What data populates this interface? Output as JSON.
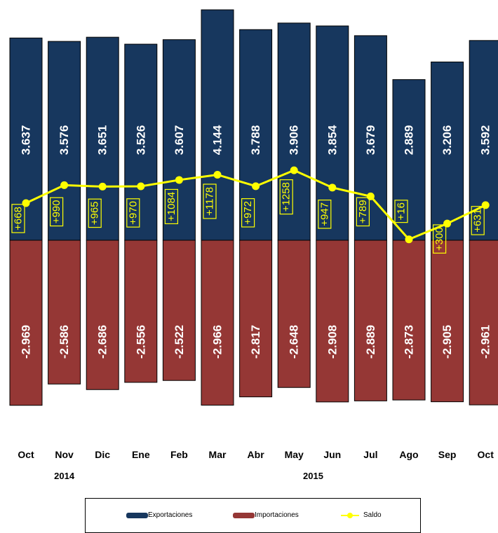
{
  "chart_data": {
    "type": "bar",
    "categories": [
      "Oct",
      "Nov",
      "Dic",
      "Ene",
      "Feb",
      "Mar",
      "Abr",
      "May",
      "Jun",
      "Jul",
      "Ago",
      "Sep",
      "Oct"
    ],
    "year_labels": [
      "2014",
      "2015"
    ],
    "series": [
      {
        "name": "Exportaciones",
        "values": [
          3637,
          3576,
          3651,
          3526,
          3607,
          4144,
          3788,
          3906,
          3854,
          3679,
          2889,
          3206,
          3592
        ],
        "labels": [
          "3.637",
          "3.576",
          "3.651",
          "3.526",
          "3.607",
          "4.144",
          "3.788",
          "3.906",
          "3.854",
          "3.679",
          "2.889",
          "3.206",
          "3.592"
        ],
        "color": "#17375e"
      },
      {
        "name": "Importaciones",
        "values": [
          -2969,
          -2586,
          -2686,
          -2556,
          -2522,
          -2966,
          -2817,
          -2648,
          -2908,
          -2889,
          -2873,
          -2905,
          -2961
        ],
        "labels": [
          "-2.969",
          "-2.586",
          "-2.686",
          "-2.556",
          "-2.522",
          "-2.966",
          "-2.817",
          "-2.648",
          "-2.908",
          "-2.889",
          "-2.873",
          "-2.905",
          "-2.961"
        ],
        "color": "#953735"
      },
      {
        "name": "Saldo",
        "values": [
          668,
          990,
          965,
          970,
          1084,
          1178,
          972,
          1258,
          947,
          789,
          16,
          300,
          631
        ],
        "labels": [
          "+668",
          "+990",
          "+965",
          "+970",
          "+1084",
          "+1178",
          "+972",
          "+1258",
          "+947",
          "+789",
          "+16",
          "+300",
          "+631"
        ],
        "color": "#ffff00"
      }
    ],
    "ylim": [
      -2969,
      4144
    ],
    "grid": false,
    "legend_position": "bottom"
  },
  "legend": {
    "exports": "Exportaciones",
    "imports": "Importaciones",
    "balance": "Saldo"
  }
}
